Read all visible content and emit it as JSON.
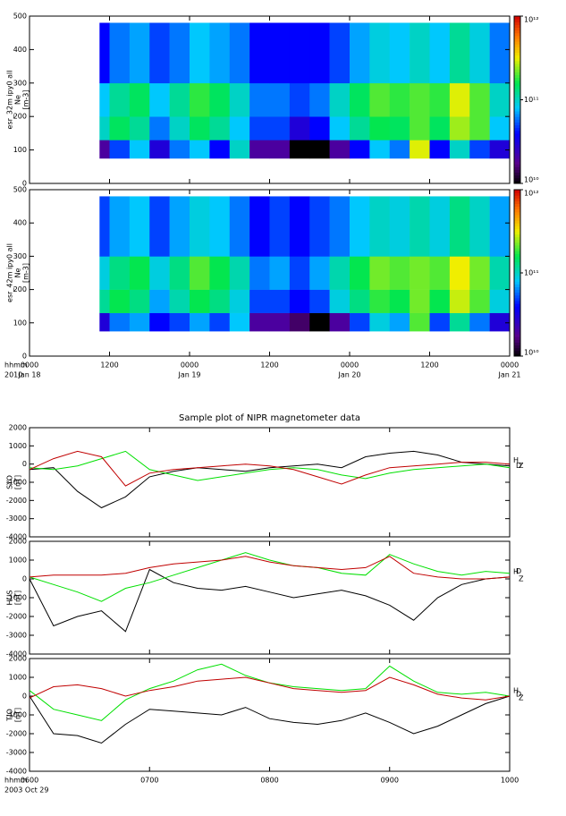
{
  "chart_data": [
    {
      "type": "heatmap",
      "y_label": [
        "esr_32m ipy0 all",
        "Ne",
        "[m-3]"
      ],
      "xlim": [
        0,
        72
      ],
      "xticks": [
        0,
        12,
        24,
        36,
        48,
        60,
        72
      ],
      "ylim": [
        0,
        500
      ],
      "yticks": [
        0,
        100,
        200,
        300,
        400,
        500
      ],
      "xbins": [
        10.5,
        12,
        15,
        18,
        21,
        24,
        27,
        30,
        33,
        36,
        39,
        42,
        45,
        48,
        51,
        54,
        57,
        60,
        63,
        66,
        69,
        72
      ],
      "ybins": [
        75,
        130,
        200,
        300,
        480
      ],
      "values": [
        [
          20000000000.0,
          50000000000.0,
          80000000000.0,
          30000000000.0,
          60000000000.0,
          80000000000.0,
          40000000000.0,
          100000000000.0,
          20000000000.0,
          20000000000.0,
          10000000000.0,
          10000000000.0,
          20000000000.0,
          40000000000.0,
          80000000000.0,
          60000000000.0,
          300000000000.0,
          40000000000.0,
          100000000000.0,
          50000000000.0,
          30000000000.0
        ],
        [
          100000000000.0,
          150000000000.0,
          120000000000.0,
          60000000000.0,
          100000000000.0,
          150000000000.0,
          120000000000.0,
          80000000000.0,
          50000000000.0,
          50000000000.0,
          30000000000.0,
          40000000000.0,
          80000000000.0,
          120000000000.0,
          160000000000.0,
          150000000000.0,
          200000000000.0,
          150000000000.0,
          250000000000.0,
          200000000000.0,
          80000000000.0
        ],
        [
          80000000000.0,
          120000000000.0,
          150000000000.0,
          80000000000.0,
          120000000000.0,
          180000000000.0,
          150000000000.0,
          100000000000.0,
          60000000000.0,
          60000000000.0,
          50000000000.0,
          60000000000.0,
          100000000000.0,
          150000000000.0,
          200000000000.0,
          180000000000.0,
          200000000000.0,
          180000000000.0,
          300000000000.0,
          200000000000.0,
          100000000000.0
        ],
        [
          40000000000.0,
          60000000000.0,
          70000000000.0,
          50000000000.0,
          60000000000.0,
          80000000000.0,
          70000000000.0,
          60000000000.0,
          40000000000.0,
          40000000000.0,
          40000000000.0,
          40000000000.0,
          50000000000.0,
          70000000000.0,
          90000000000.0,
          80000000000.0,
          100000000000.0,
          80000000000.0,
          120000000000.0,
          90000000000.0,
          60000000000.0
        ]
      ],
      "colorbar": {
        "log": true,
        "lim": [
          10000000000.0,
          1000000000000.0
        ],
        "ticks": [
          {
            "value": 10000000000.0,
            "label": "10¹⁰"
          },
          {
            "value": 100000000000.0,
            "label": "10¹¹"
          },
          {
            "value": 1000000000000.0,
            "label": "10¹²"
          }
        ]
      }
    },
    {
      "type": "heatmap",
      "y_label": [
        "esr_42m ipy0 all",
        "Ne",
        "[m-3]"
      ],
      "xlim": [
        0,
        72
      ],
      "xticks": [
        {
          "value": 0,
          "label": "0000"
        },
        {
          "value": 12,
          "label": "1200"
        },
        {
          "value": 24,
          "label": "0000"
        },
        {
          "value": 36,
          "label": "1200"
        },
        {
          "value": 48,
          "label": "0000"
        },
        {
          "value": 60,
          "label": "1200"
        },
        {
          "value": 72,
          "label": "0000"
        }
      ],
      "xdates": [
        {
          "value": 0,
          "label": "Jan 18"
        },
        {
          "value": 24,
          "label": "Jan 19"
        },
        {
          "value": 48,
          "label": "Jan 20"
        },
        {
          "value": 72,
          "label": "Jan 21"
        }
      ],
      "x_label": "hhmm",
      "x_sublabel": "2010",
      "ylim": [
        0,
        500
      ],
      "yticks": [
        0,
        100,
        200,
        300,
        400,
        500
      ],
      "xbins": [
        10.5,
        12,
        15,
        18,
        21,
        24,
        27,
        30,
        33,
        36,
        39,
        42,
        45,
        48,
        51,
        54,
        57,
        60,
        63,
        66,
        69,
        72
      ],
      "ybins": [
        75,
        130,
        200,
        300,
        480
      ],
      "values": [
        [
          30000000000.0,
          60000000000.0,
          70000000000.0,
          40000000000.0,
          50000000000.0,
          70000000000.0,
          50000000000.0,
          80000000000.0,
          20000000000.0,
          20000000000.0,
          15000000000.0,
          10000000000.0,
          20000000000.0,
          50000000000.0,
          90000000000.0,
          70000000000.0,
          200000000000.0,
          50000000000.0,
          120000000000.0,
          60000000000.0,
          30000000000.0
        ],
        [
          120000000000.0,
          160000000000.0,
          130000000000.0,
          70000000000.0,
          110000000000.0,
          160000000000.0,
          130000000000.0,
          90000000000.0,
          50000000000.0,
          50000000000.0,
          40000000000.0,
          50000000000.0,
          90000000000.0,
          130000000000.0,
          180000000000.0,
          160000000000.0,
          220000000000.0,
          160000000000.0,
          280000000000.0,
          200000000000.0,
          90000000000.0
        ],
        [
          90000000000.0,
          130000000000.0,
          160000000000.0,
          90000000000.0,
          130000000000.0,
          200000000000.0,
          160000000000.0,
          110000000000.0,
          60000000000.0,
          70000000000.0,
          50000000000.0,
          70000000000.0,
          110000000000.0,
          160000000000.0,
          220000000000.0,
          200000000000.0,
          220000000000.0,
          200000000000.0,
          320000000000.0,
          220000000000.0,
          110000000000.0
        ],
        [
          50000000000.0,
          70000000000.0,
          80000000000.0,
          50000000000.0,
          70000000000.0,
          90000000000.0,
          80000000000.0,
          60000000000.0,
          40000000000.0,
          50000000000.0,
          40000000000.0,
          50000000000.0,
          60000000000.0,
          80000000000.0,
          100000000000.0,
          90000000000.0,
          110000000000.0,
          90000000000.0,
          130000000000.0,
          100000000000.0,
          70000000000.0
        ]
      ],
      "colorbar": {
        "log": true,
        "lim": [
          10000000000.0,
          1000000000000.0
        ],
        "ticks": [
          {
            "value": 10000000000.0,
            "label": "10¹⁰"
          },
          {
            "value": 100000000000.0,
            "label": "10¹¹"
          },
          {
            "value": 1000000000000.0,
            "label": "10¹²"
          }
        ]
      }
    },
    {
      "type": "line",
      "title": "Sample plot of NIPR magnetometer data",
      "y_label": [
        "SYO",
        "[nT]"
      ],
      "x": [
        6,
        6.2,
        6.4,
        6.6,
        6.8,
        7,
        7.2,
        7.4,
        7.6,
        7.8,
        8,
        8.2,
        8.4,
        8.6,
        8.8,
        9,
        9.2,
        9.4,
        9.6,
        9.8,
        10
      ],
      "xlim": [
        6,
        10
      ],
      "xticks": [
        6,
        7,
        8,
        9,
        10
      ],
      "ylim": [
        -4000,
        2000
      ],
      "yticks": [
        -4000,
        -3000,
        -2000,
        -1000,
        0,
        1000,
        2000
      ],
      "series": [
        {
          "name": "H",
          "color": "#000000",
          "values": [
            -300,
            -200,
            -1500,
            -2400,
            -1800,
            -700,
            -400,
            -200,
            -300,
            -400,
            -200,
            -100,
            0,
            -200,
            400,
            600,
            700,
            500,
            100,
            0,
            -100
          ]
        },
        {
          "name": "D",
          "color": "#00e000",
          "values": [
            -200,
            -300,
            -100,
            300,
            700,
            -300,
            -600,
            -900,
            -700,
            -500,
            -300,
            -200,
            -300,
            -600,
            -800,
            -500,
            -300,
            -200,
            -100,
            0,
            -200
          ]
        },
        {
          "name": "Z",
          "color": "#c00000",
          "values": [
            -300,
            300,
            700,
            400,
            -1200,
            -500,
            -300,
            -200,
            -100,
            0,
            -100,
            -300,
            -700,
            -1100,
            -600,
            -200,
            -100,
            0,
            100,
            100,
            0
          ]
        }
      ]
    },
    {
      "type": "line",
      "y_label": [
        "HUS",
        "[nT]"
      ],
      "x": [
        6,
        6.2,
        6.4,
        6.6,
        6.8,
        7,
        7.2,
        7.4,
        7.6,
        7.8,
        8,
        8.2,
        8.4,
        8.6,
        8.8,
        9,
        9.2,
        9.4,
        9.6,
        9.8,
        10
      ],
      "xlim": [
        6,
        10
      ],
      "xticks": [
        6,
        7,
        8,
        9,
        10
      ],
      "ylim": [
        -4000,
        2000
      ],
      "yticks": [
        -4000,
        -3000,
        -2000,
        -1000,
        0,
        1000,
        2000
      ],
      "series": [
        {
          "name": "H",
          "color": "#000000",
          "values": [
            0,
            -2500,
            -2000,
            -1700,
            -2800,
            500,
            -200,
            -500,
            -600,
            -400,
            -700,
            -1000,
            -800,
            -600,
            -900,
            -1400,
            -2200,
            -1000,
            -300,
            0,
            100
          ]
        },
        {
          "name": "D",
          "color": "#00e000",
          "values": [
            100,
            -300,
            -700,
            -1200,
            -500,
            -200,
            200,
            600,
            1000,
            1400,
            1000,
            700,
            600,
            300,
            200,
            1300,
            800,
            400,
            200,
            400,
            300
          ]
        },
        {
          "name": "Z",
          "color": "#c00000",
          "values": [
            100,
            200,
            200,
            200,
            300,
            600,
            800,
            900,
            1000,
            1200,
            900,
            700,
            600,
            500,
            600,
            1200,
            300,
            100,
            0,
            0,
            100
          ]
        }
      ]
    },
    {
      "type": "line",
      "y_label": [
        "TJO",
        "[nT]"
      ],
      "x": [
        6,
        6.2,
        6.4,
        6.6,
        6.8,
        7,
        7.2,
        7.4,
        7.6,
        7.8,
        8,
        8.2,
        8.4,
        8.6,
        8.8,
        9,
        9.2,
        9.4,
        9.6,
        9.8,
        10
      ],
      "xlim": [
        6,
        10
      ],
      "xticks": [
        {
          "value": 6,
          "label": "0600"
        },
        {
          "value": 7,
          "label": "0700"
        },
        {
          "value": 8,
          "label": "0800"
        },
        {
          "value": 9,
          "label": "0900"
        },
        {
          "value": 10,
          "label": "1000"
        }
      ],
      "x_label": "hhmm",
      "x_sublabel": "2003 Oct 29",
      "ylim": [
        -4000,
        2000
      ],
      "yticks": [
        -4000,
        -3000,
        -2000,
        -1000,
        0,
        1000,
        2000
      ],
      "series": [
        {
          "name": "H",
          "color": "#000000",
          "values": [
            0,
            -2000,
            -2100,
            -2500,
            -1500,
            -700,
            -800,
            -900,
            -1000,
            -600,
            -1200,
            -1400,
            -1500,
            -1300,
            -900,
            -1400,
            -2000,
            -1600,
            -1000,
            -400,
            0
          ]
        },
        {
          "name": "D",
          "color": "#00e000",
          "values": [
            300,
            -700,
            -1000,
            -1300,
            -200,
            400,
            800,
            1400,
            1700,
            1100,
            700,
            500,
            400,
            300,
            400,
            1600,
            800,
            200,
            100,
            200,
            0
          ]
        },
        {
          "name": "Z",
          "color": "#c00000",
          "values": [
            -100,
            500,
            600,
            400,
            0,
            300,
            500,
            800,
            900,
            1000,
            700,
            400,
            300,
            200,
            300,
            1000,
            600,
            100,
            -100,
            -200,
            0
          ]
        }
      ]
    }
  ]
}
